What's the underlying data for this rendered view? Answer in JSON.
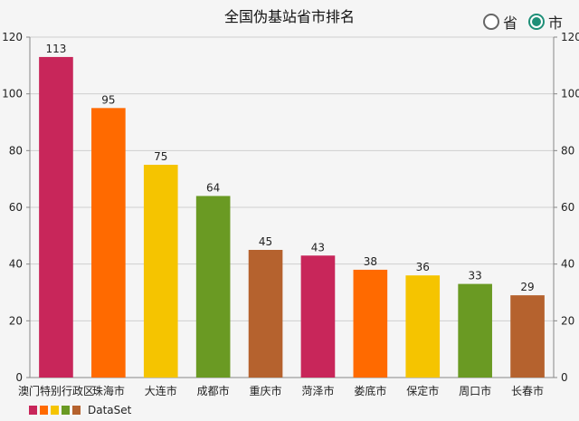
{
  "title": "全国伪基站省市排名",
  "toggle": {
    "options": [
      {
        "label": "省",
        "selected": false
      },
      {
        "label": "市",
        "selected": true
      }
    ]
  },
  "chart_data": {
    "type": "bar",
    "title": "全国伪基站省市排名",
    "categories": [
      "澳门特别行政区",
      "珠海市",
      "大连市",
      "成都市",
      "重庆市",
      "菏泽市",
      "娄底市",
      "保定市",
      "周口市",
      "长春市"
    ],
    "series": [
      {
        "name": "DataSet",
        "values": [
          113,
          95,
          75,
          64,
          45,
          43,
          38,
          36,
          33,
          29
        ]
      }
    ],
    "colors": [
      "#c8265a",
      "#ff6a00",
      "#f5c400",
      "#6a9a23",
      "#b5622e",
      "#c8265a",
      "#ff6a00",
      "#f5c400",
      "#6a9a23",
      "#b5622e"
    ],
    "ylim": [
      0,
      120
    ],
    "yticks": [
      0,
      20,
      40,
      60,
      80,
      100,
      120
    ],
    "xlabel": "",
    "ylabel": "",
    "grid": true,
    "axes": "left-and-right",
    "legend": {
      "position": "bottom-left",
      "label": "DataSet",
      "colors": [
        "#c8265a",
        "#ff6a00",
        "#f5c400",
        "#6a9a23",
        "#b5622e"
      ]
    }
  }
}
